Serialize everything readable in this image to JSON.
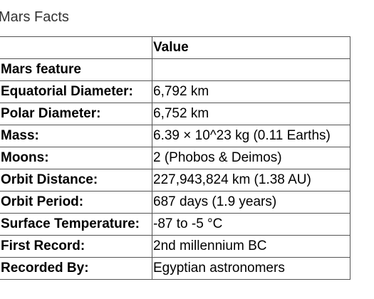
{
  "title": "Mars Facts",
  "table": {
    "header": {
      "corner": "",
      "value_column": "Value"
    },
    "index_name": "Mars feature",
    "index_value": "",
    "rows": [
      {
        "key": "Equatorial Diameter:",
        "value": "6,792 km"
      },
      {
        "key": "Polar Diameter:",
        "value": "6,752 km"
      },
      {
        "key": "Mass:",
        "value": "6.39 × 10^23 kg (0.11 Earths)"
      },
      {
        "key": "Moons:",
        "value": "2 (Phobos & Deimos)"
      },
      {
        "key": "Orbit Distance:",
        "value": "227,943,824 km (1.38 AU)"
      },
      {
        "key": "Orbit Period:",
        "value": "687 days (1.9 years)"
      },
      {
        "key": "Surface Temperature:",
        "value": "-87 to -5 °C"
      },
      {
        "key": "First Record:",
        "value": "2nd millennium BC"
      },
      {
        "key": "Recorded By:",
        "value": "Egyptian astronomers"
      }
    ]
  }
}
